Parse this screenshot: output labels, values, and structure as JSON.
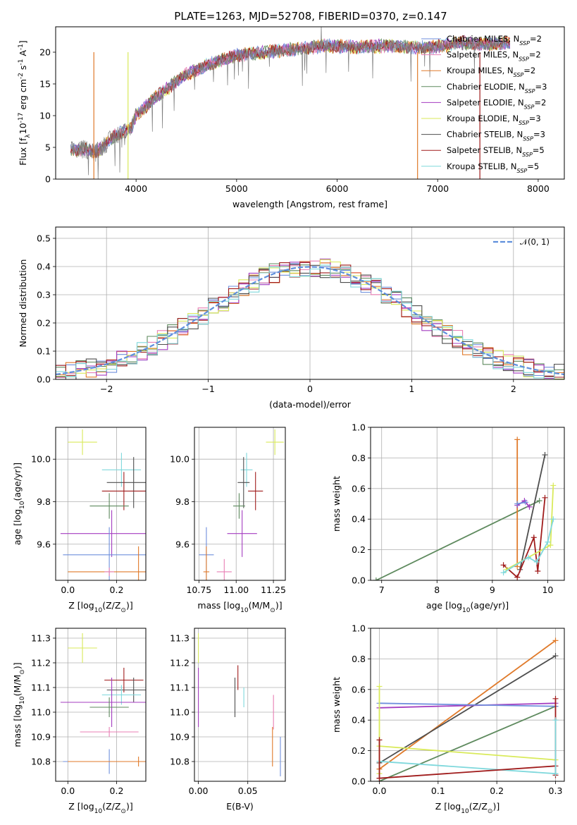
{
  "title": "PLATE=1263, MJD=52708, FIBERID=0370, z=0.147",
  "colors": {
    "chabrier_miles": "#6f8fdc",
    "salpeter_miles": "#e87fb4",
    "kroupa_miles": "#e07a2a",
    "chabrier_elodie": "#5e8a5e",
    "salpeter_elodie": "#a43cc0",
    "kroupa_elodie": "#d9ea5a",
    "chabrier_stelib": "#4e4e4e",
    "salpeter_stelib": "#a01c1c",
    "kroupa_stelib": "#7fd8dc",
    "normal": "#5f8fdc",
    "data": "#7f7f7f"
  },
  "chart_data": [
    {
      "id": "spectrum",
      "type": "line",
      "xlabel": "wavelength [Angstrom, rest frame]",
      "ylabel": "Flux [f$_\\lambda$10$^{-17}$ erg cm$^{-2}$ s$^{-1}$ A$^{-1}$]",
      "xlim": [
        3200,
        8260
      ],
      "ylim": [
        0,
        24
      ],
      "xticks": [
        "4000",
        "5000",
        "6000",
        "7000",
        "8000"
      ],
      "yticks": [
        "0",
        "5",
        "10",
        "15",
        "20"
      ],
      "legend_position": "top-right",
      "continuum_x": [
        3350,
        3500,
        3600,
        3800,
        3950,
        4000,
        4200,
        4500,
        4800,
        5000,
        5300,
        5600,
        5900,
        6200,
        6500,
        6800,
        7000,
        7200,
        7400,
        7600,
        7700
      ],
      "continuum_y": [
        4.5,
        4.7,
        4.2,
        7.0,
        8.0,
        10.0,
        13.0,
        16.5,
        18.5,
        19.5,
        20.0,
        20.5,
        21.0,
        20.8,
        21.0,
        20.7,
        20.8,
        21.5,
        21.3,
        21.3,
        21.5
      ],
      "cutoffs": [
        {
          "series": "Kroupa MILES",
          "x": 3580
        },
        {
          "series": "Kroupa ELODIE",
          "x": 3920
        },
        {
          "series": "Kroupa MILES",
          "x": 6800
        },
        {
          "series": "Salpeter STELIB",
          "x": 7420
        }
      ],
      "series": [
        "Chabrier MILES, N$_{SSP}$=2",
        "Salpeter MILES, N$_{SSP}$=2",
        "Kroupa MILES, N$_{SSP}$=2",
        "Chabrier ELODIE, N$_{SSP}$=3",
        "Salpeter ELODIE, N$_{SSP}$=2",
        "Kroupa ELODIE, N$_{SSP}$=3",
        "Chabrier STELIB, N$_{SSP}$=3",
        "Salpeter STELIB, N$_{SSP}$=5",
        "Kroupa STELIB, N$_{SSP}$=5"
      ],
      "legend": [
        {
          "label": "Chabrier MILES, N",
          "sub": "SSP",
          "tail": "=2",
          "color": "chabrier_miles"
        },
        {
          "label": "Salpeter MILES, N",
          "sub": "SSP",
          "tail": "=2",
          "color": "salpeter_miles"
        },
        {
          "label": "Kroupa MILES, N",
          "sub": "SSP",
          "tail": "=2",
          "color": "kroupa_miles"
        },
        {
          "label": "Chabrier ELODIE, N",
          "sub": "SSP",
          "tail": "=3",
          "color": "chabrier_elodie"
        },
        {
          "label": "Salpeter ELODIE, N",
          "sub": "SSP",
          "tail": "=2",
          "color": "salpeter_elodie"
        },
        {
          "label": "Kroupa ELODIE, N",
          "sub": "SSP",
          "tail": "=3",
          "color": "kroupa_elodie"
        },
        {
          "label": "Chabrier STELIB, N",
          "sub": "SSP",
          "tail": "=3",
          "color": "chabrier_stelib"
        },
        {
          "label": "Salpeter STELIB, N",
          "sub": "SSP",
          "tail": "=5",
          "color": "salpeter_stelib"
        },
        {
          "label": "Kroupa STELIB, N",
          "sub": "SSP",
          "tail": "=5",
          "color": "kroupa_stelib"
        }
      ]
    },
    {
      "id": "residual_hist",
      "type": "bar",
      "xlabel": "(data-model)/error",
      "ylabel": "Normed distribution",
      "xlim": [
        -2.5,
        2.5
      ],
      "ylim": [
        0,
        0.54
      ],
      "xticks": [
        "−2",
        "−1",
        "0",
        "1",
        "2"
      ],
      "yticks": [
        "0.0",
        "0.1",
        "0.2",
        "0.3",
        "0.4",
        "0.5"
      ],
      "legend_label": "𝒩(0, 1)",
      "legend_position": "top-right",
      "bin_width": 0.1
    },
    {
      "id": "age_vs_Z",
      "type": "scatter",
      "xlabel": "Z [log$_{10}$(Z/Z$_\\odot$)]",
      "ylabel": "age  [log$_{10}$(age/yr)]",
      "xlim": [
        -0.05,
        0.32
      ],
      "ylim": [
        9.43,
        10.15
      ],
      "xticks": [
        "0.0",
        "0.2"
      ],
      "yticks": [
        "9.6",
        "9.8",
        "10.0"
      ],
      "points": [
        {
          "series": "kroupa_elodie",
          "x": 0.06,
          "y": 10.08,
          "xerr": 0.06,
          "yerr": 0.06
        },
        {
          "series": "kroupa_stelib",
          "x": 0.22,
          "y": 9.95,
          "xerr": 0.08,
          "yerr": 0.08
        },
        {
          "series": "chabrier_stelib",
          "x": 0.27,
          "y": 9.89,
          "xerr": 0.11,
          "yerr": 0.12
        },
        {
          "series": "salpeter_stelib",
          "x": 0.23,
          "y": 9.85,
          "xerr": 0.09,
          "yerr": 0.09
        },
        {
          "series": "chabrier_elodie",
          "x": 0.17,
          "y": 9.78,
          "xerr": 0.08,
          "yerr": 0.06
        },
        {
          "series": "salpeter_elodie",
          "x": 0.18,
          "y": 9.65,
          "xerr": 0.21,
          "yerr": 0.11
        },
        {
          "series": "chabrier_miles",
          "x": 0.17,
          "y": 9.55,
          "xerr": 0.19,
          "yerr": 0.13
        },
        {
          "series": "kroupa_miles",
          "x": 0.29,
          "y": 9.47,
          "xerr": 0.29,
          "yerr": 0.12
        },
        {
          "series": "salpeter_miles",
          "x": 0.17,
          "y": 9.47,
          "xerr": 0.02,
          "yerr": 0.02
        }
      ]
    },
    {
      "id": "age_vs_mass",
      "type": "scatter",
      "xlabel": "mass [log$_{10}$(M/M$_\\odot$)]",
      "ylabel": "",
      "xlim": [
        10.72,
        11.33
      ],
      "ylim": [
        9.43,
        10.15
      ],
      "xticks": [
        "10.75",
        "11.00",
        "11.25"
      ],
      "yticks": [
        "9.6",
        "9.8",
        "10.0"
      ],
      "points": [
        {
          "series": "kroupa_elodie",
          "x": 11.26,
          "y": 10.08,
          "xerr": 0.06,
          "yerr": 0.06
        },
        {
          "series": "kroupa_stelib",
          "x": 11.07,
          "y": 9.95,
          "xerr": 0.04,
          "yerr": 0.08
        },
        {
          "series": "chabrier_stelib",
          "x": 11.05,
          "y": 9.89,
          "xerr": 0.04,
          "yerr": 0.12
        },
        {
          "series": "salpeter_stelib",
          "x": 11.13,
          "y": 9.85,
          "xerr": 0.05,
          "yerr": 0.09
        },
        {
          "series": "chabrier_elodie",
          "x": 11.02,
          "y": 9.78,
          "xerr": 0.04,
          "yerr": 0.06
        },
        {
          "series": "salpeter_elodie",
          "x": 11.04,
          "y": 9.65,
          "xerr": 0.1,
          "yerr": 0.11
        },
        {
          "series": "chabrier_miles",
          "x": 10.8,
          "y": 9.55,
          "xerr": 0.05,
          "yerr": 0.13
        },
        {
          "series": "kroupa_miles",
          "x": 10.8,
          "y": 9.47,
          "xerr": 0.02,
          "yerr": 0.12
        },
        {
          "series": "salpeter_miles",
          "x": 10.92,
          "y": 9.47,
          "xerr": 0.05,
          "yerr": 0.06
        }
      ]
    },
    {
      "id": "massweight_vs_age",
      "type": "line",
      "xlabel": "age  [log$_{10}$(age/yr)]",
      "ylabel": "mass weight",
      "xlim": [
        6.8,
        10.3
      ],
      "ylim": [
        0,
        1
      ],
      "xticks": [
        "7",
        "8",
        "9",
        "10"
      ],
      "yticks": [
        "0.0",
        "0.2",
        "0.4",
        "0.6",
        "0.8",
        "1.0"
      ],
      "series": [
        {
          "series": "chabrier_elodie",
          "x": [
            6.9,
            9.85
          ],
          "y": [
            0.0,
            0.52
          ]
        },
        {
          "series": "kroupa_miles",
          "x": [
            9.45,
            9.45
          ],
          "y": [
            0.09,
            0.92
          ]
        },
        {
          "series": "salpeter_elodie",
          "x": [
            9.45,
            9.58,
            9.67
          ],
          "y": [
            0.49,
            0.52,
            0.48
          ]
        },
        {
          "series": "chabrier_miles",
          "x": [
            9.45,
            9.6
          ],
          "y": [
            0.5,
            0.51
          ]
        },
        {
          "series": "chabrier_stelib",
          "x": [
            9.5,
            9.95
          ],
          "y": [
            0.07,
            0.82
          ]
        },
        {
          "series": "salpeter_stelib",
          "x": [
            9.2,
            9.45,
            9.75,
            9.82,
            9.95
          ],
          "y": [
            0.1,
            0.02,
            0.28,
            0.06,
            0.54
          ]
        },
        {
          "series": "kroupa_elodie",
          "x": [
            9.25,
            10.05,
            10.1
          ],
          "y": [
            0.07,
            0.23,
            0.62
          ]
        },
        {
          "series": "kroupa_stelib",
          "x": [
            9.2,
            9.65,
            9.8,
            10.0,
            10.1
          ],
          "y": [
            0.05,
            0.15,
            0.12,
            0.25,
            0.4
          ]
        }
      ]
    },
    {
      "id": "mass_vs_Z",
      "type": "scatter",
      "xlabel": "Z [log$_{10}$(Z/Z$_\\odot$)]",
      "ylabel": "mass [log$_{10}$(M/M$_\\odot$)]",
      "xlim": [
        -0.05,
        0.32
      ],
      "ylim": [
        10.72,
        11.34
      ],
      "xticks": [
        "0.0",
        "0.2"
      ],
      "yticks": [
        "10.8",
        "10.9",
        "11.0",
        "11.1",
        "11.2",
        "11.3"
      ],
      "points": [
        {
          "series": "kroupa_elodie",
          "x": 0.06,
          "y": 11.26,
          "xerr": 0.06,
          "yerr": 0.06
        },
        {
          "series": "salpeter_stelib",
          "x": 0.23,
          "y": 11.13,
          "xerr": 0.08,
          "yerr": 0.05
        },
        {
          "series": "chabrier_stelib",
          "x": 0.27,
          "y": 11.09,
          "xerr": 0.11,
          "yerr": 0.05
        },
        {
          "series": "kroupa_stelib",
          "x": 0.22,
          "y": 11.07,
          "xerr": 0.08,
          "yerr": 0.04
        },
        {
          "series": "salpeter_elodie",
          "x": 0.18,
          "y": 11.04,
          "xerr": 0.21,
          "yerr": 0.1
        },
        {
          "series": "chabrier_elodie",
          "x": 0.17,
          "y": 11.02,
          "xerr": 0.08,
          "yerr": 0.04
        },
        {
          "series": "salpeter_miles",
          "x": 0.17,
          "y": 10.92,
          "xerr": 0.12,
          "yerr": 0.02
        },
        {
          "series": "chabrier_miles",
          "x": 0.17,
          "y": 10.8,
          "xerr": 0.19,
          "yerr": 0.05
        },
        {
          "series": "kroupa_miles",
          "x": 0.29,
          "y": 10.8,
          "xerr": 0.29,
          "yerr": 0.02
        }
      ]
    },
    {
      "id": "mass_vs_ebv",
      "type": "scatter",
      "xlabel": "E(B-V)",
      "ylabel": "",
      "xlim": [
        -0.004,
        0.088
      ],
      "ylim": [
        10.72,
        11.34
      ],
      "xticks": [
        "0.00",
        "0.05"
      ],
      "yticks": [
        "10.8",
        "10.9",
        "11.0",
        "11.1",
        "11.2",
        "11.3"
      ],
      "points": [
        {
          "series": "kroupa_elodie",
          "x": 0.0,
          "y": 11.26,
          "xerr": 0,
          "yerr": 0.06
        },
        {
          "series": "salpeter_elodie",
          "x": 0.0,
          "y": 11.06,
          "xerr": 0,
          "yerr": 0.12
        },
        {
          "series": "salpeter_stelib",
          "x": 0.04,
          "y": 11.14,
          "xerr": 0,
          "yerr": 0.05
        },
        {
          "series": "chabrier_stelib",
          "x": 0.037,
          "y": 11.06,
          "xerr": 0,
          "yerr": 0.08
        },
        {
          "series": "kroupa_stelib",
          "x": 0.046,
          "y": 11.06,
          "xerr": 0,
          "yerr": 0.04
        },
        {
          "series": "salpeter_miles",
          "x": 0.076,
          "y": 11.0,
          "xerr": 0,
          "yerr": 0.07
        },
        {
          "series": "kroupa_miles",
          "x": 0.075,
          "y": 10.86,
          "xerr": 0,
          "yerr": 0.08
        },
        {
          "series": "chabrier_miles",
          "x": 0.083,
          "y": 10.82,
          "xerr": 0,
          "yerr": 0.08
        }
      ]
    },
    {
      "id": "massweight_vs_Z",
      "type": "line",
      "xlabel": "Z [log$_{10}$(Z/Z$_\\odot$)]",
      "ylabel": "mass weight",
      "xlim": [
        -0.015,
        0.315
      ],
      "ylim": [
        0,
        1
      ],
      "xticks": [
        "0.0",
        "0.1",
        "0.2",
        "0.3"
      ],
      "yticks": [
        "0.0",
        "0.2",
        "0.4",
        "0.6",
        "0.8",
        "1.0"
      ],
      "series": [
        {
          "series": "kroupa_miles",
          "x": [
            0.0,
            0.3
          ],
          "y": [
            0.08,
            0.92
          ]
        },
        {
          "series": "chabrier_stelib",
          "x": [
            0.0,
            0.3
          ],
          "y": [
            0.12,
            0.82
          ]
        },
        {
          "series": "chabrier_elodie",
          "x": [
            0.0,
            0.3
          ],
          "y": [
            0.0,
            0.49
          ]
        },
        {
          "series": "salpeter_elodie",
          "x": [
            0.0,
            0.3
          ],
          "y": [
            0.48,
            0.51
          ]
        },
        {
          "series": "chabrier_miles",
          "x": [
            0.0,
            0.3
          ],
          "y": [
            0.51,
            0.49
          ]
        },
        {
          "series": "kroupa_elodie",
          "x": [
            0.0,
            0.3
          ],
          "y": [
            0.23,
            0.14
          ]
        },
        {
          "series": "kroupa_stelib",
          "x": [
            0.0,
            0.3
          ],
          "y": [
            0.13,
            0.05
          ]
        },
        {
          "series": "salpeter_stelib",
          "x": [
            0.0,
            0.3
          ],
          "y": [
            0.02,
            0.1
          ]
        },
        {
          "series": "kroupa_elodie",
          "x": [
            0.0,
            0.0
          ],
          "y": [
            0.05,
            0.62
          ]
        },
        {
          "series": "salpeter_stelib",
          "x": [
            0.0,
            0.0
          ],
          "y": [
            0.02,
            0.27
          ]
        },
        {
          "series": "salpeter_stelib",
          "x": [
            0.3,
            0.3
          ],
          "y": [
            0.04,
            0.54
          ]
        },
        {
          "series": "kroupa_stelib",
          "x": [
            0.3,
            0.3
          ],
          "y": [
            0.05,
            0.4
          ]
        }
      ]
    }
  ]
}
